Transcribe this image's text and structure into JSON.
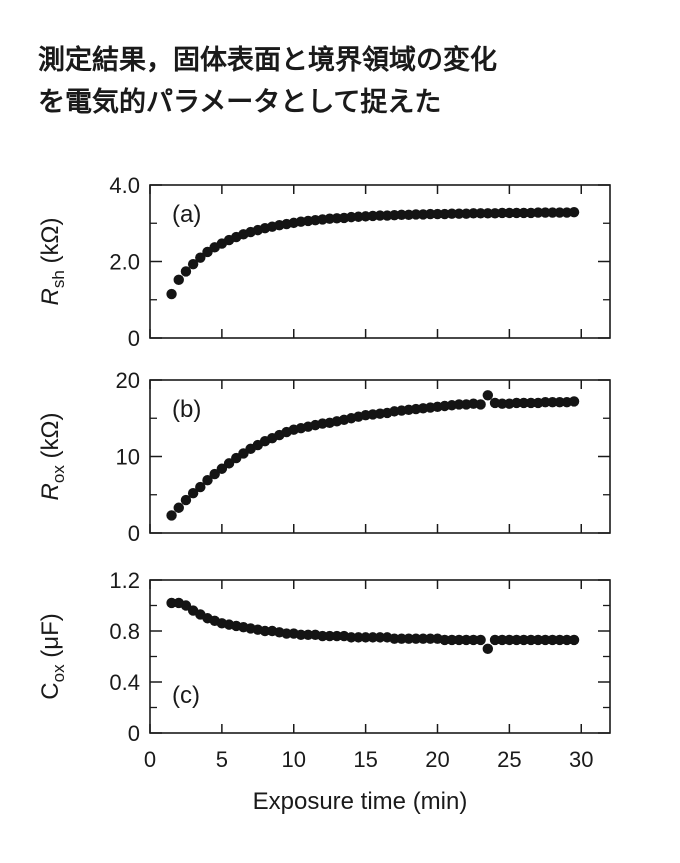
{
  "title": {
    "line1": "測定結果，固体表面と境界領域の変化",
    "line2": "を電気的パラメータとして捉えた"
  },
  "colors": {
    "marker": "#141414",
    "axis": "#1a1a1a",
    "background": "#ffffff"
  },
  "chart_data": [
    {
      "type": "scatter",
      "panel_label": "(a)",
      "ylabel_main": "R",
      "ylabel_sub": "sh",
      "ylabel_unit": "(kΩ)",
      "ylim": [
        0,
        4.0
      ],
      "yticks": [
        0,
        2.0,
        4.0
      ],
      "ytick_labels": [
        "0",
        "2.0",
        "4.0"
      ],
      "xlim": [
        0,
        32
      ],
      "grid": false,
      "x": [
        1.5,
        2.0,
        2.5,
        3.0,
        3.5,
        4.0,
        4.5,
        5.0,
        5.5,
        6.0,
        6.5,
        7.0,
        7.5,
        8.0,
        8.5,
        9.0,
        9.5,
        10.0,
        10.5,
        11.0,
        11.5,
        12.0,
        12.5,
        13.0,
        13.5,
        14.0,
        14.5,
        15.0,
        15.5,
        16.0,
        16.5,
        17.0,
        17.5,
        18.0,
        18.5,
        19.0,
        19.5,
        20.0,
        20.5,
        21.0,
        21.5,
        22.0,
        22.5,
        23.0,
        23.5,
        24.0,
        24.5,
        25.0,
        25.5,
        26.0,
        26.5,
        27.0,
        27.5,
        28.0,
        28.5,
        29.0,
        29.5
      ],
      "y": [
        1.15,
        1.52,
        1.74,
        1.93,
        2.1,
        2.25,
        2.37,
        2.47,
        2.56,
        2.64,
        2.71,
        2.77,
        2.82,
        2.87,
        2.91,
        2.95,
        2.98,
        3.01,
        3.04,
        3.06,
        3.08,
        3.1,
        3.12,
        3.13,
        3.14,
        3.16,
        3.17,
        3.18,
        3.19,
        3.2,
        3.2,
        3.21,
        3.22,
        3.22,
        3.23,
        3.23,
        3.24,
        3.24,
        3.24,
        3.25,
        3.25,
        3.25,
        3.26,
        3.26,
        3.26,
        3.26,
        3.27,
        3.27,
        3.27,
        3.27,
        3.27,
        3.28,
        3.28,
        3.28,
        3.28,
        3.28,
        3.29
      ]
    },
    {
      "type": "scatter",
      "panel_label": "(b)",
      "ylabel_main": "R",
      "ylabel_sub": "ox",
      "ylabel_unit": "(kΩ)",
      "ylim": [
        0,
        20
      ],
      "yticks": [
        0,
        10,
        20
      ],
      "ytick_labels": [
        "0",
        "10",
        "20"
      ],
      "xlim": [
        0,
        32
      ],
      "grid": false,
      "x": [
        1.5,
        2.0,
        2.5,
        3.0,
        3.5,
        4.0,
        4.5,
        5.0,
        5.5,
        6.0,
        6.5,
        7.0,
        7.5,
        8.0,
        8.5,
        9.0,
        9.5,
        10.0,
        10.5,
        11.0,
        11.5,
        12.0,
        12.5,
        13.0,
        13.5,
        14.0,
        14.5,
        15.0,
        15.5,
        16.0,
        16.5,
        17.0,
        17.5,
        18.0,
        18.5,
        19.0,
        19.5,
        20.0,
        20.5,
        21.0,
        21.5,
        22.0,
        22.5,
        23.0,
        23.5,
        24.0,
        24.5,
        25.0,
        25.5,
        26.0,
        26.5,
        27.0,
        27.5,
        28.0,
        28.5,
        29.0,
        29.5
      ],
      "y": [
        2.3,
        3.3,
        4.3,
        5.2,
        6.0,
        6.9,
        7.7,
        8.4,
        9.1,
        9.8,
        10.4,
        11.0,
        11.5,
        12.0,
        12.4,
        12.8,
        13.2,
        13.5,
        13.7,
        13.9,
        14.1,
        14.3,
        14.4,
        14.6,
        14.8,
        15.0,
        15.2,
        15.4,
        15.5,
        15.6,
        15.7,
        15.9,
        16.0,
        16.1,
        16.2,
        16.3,
        16.4,
        16.5,
        16.6,
        16.7,
        16.8,
        16.8,
        16.9,
        16.8,
        18.0,
        17.0,
        16.9,
        16.9,
        17.0,
        17.0,
        17.0,
        17.0,
        17.1,
        17.1,
        17.1,
        17.1,
        17.2
      ]
    },
    {
      "type": "scatter",
      "panel_label": "(c)",
      "ylabel_main": "C",
      "ylabel_sub": "ox",
      "ylabel_unit": "(μF)",
      "ylim": [
        0,
        1.2
      ],
      "yticks": [
        0,
        0.4,
        0.8,
        1.2
      ],
      "ytick_labels": [
        "0",
        "0.4",
        "0.8",
        "1.2"
      ],
      "xlim": [
        0,
        32
      ],
      "xticks": [
        0,
        5,
        10,
        15,
        20,
        25,
        30
      ],
      "xtick_labels": [
        "0",
        "5",
        "10",
        "15",
        "20",
        "25",
        "30"
      ],
      "xlabel": "Exposure time (min)",
      "grid": false,
      "x": [
        1.5,
        2.0,
        2.5,
        3.0,
        3.5,
        4.0,
        4.5,
        5.0,
        5.5,
        6.0,
        6.5,
        7.0,
        7.5,
        8.0,
        8.5,
        9.0,
        9.5,
        10.0,
        10.5,
        11.0,
        11.5,
        12.0,
        12.5,
        13.0,
        13.5,
        14.0,
        14.5,
        15.0,
        15.5,
        16.0,
        16.5,
        17.0,
        17.5,
        18.0,
        18.5,
        19.0,
        19.5,
        20.0,
        20.5,
        21.0,
        21.5,
        22.0,
        22.5,
        23.0,
        23.5,
        24.0,
        24.5,
        25.0,
        25.5,
        26.0,
        26.5,
        27.0,
        27.5,
        28.0,
        28.5,
        29.0,
        29.5
      ],
      "y": [
        1.02,
        1.02,
        1.0,
        0.96,
        0.93,
        0.9,
        0.88,
        0.86,
        0.85,
        0.84,
        0.83,
        0.82,
        0.81,
        0.8,
        0.8,
        0.79,
        0.78,
        0.78,
        0.77,
        0.77,
        0.77,
        0.76,
        0.76,
        0.76,
        0.76,
        0.75,
        0.75,
        0.75,
        0.75,
        0.75,
        0.75,
        0.74,
        0.74,
        0.74,
        0.74,
        0.74,
        0.74,
        0.74,
        0.73,
        0.73,
        0.73,
        0.73,
        0.73,
        0.73,
        0.66,
        0.73,
        0.73,
        0.73,
        0.73,
        0.73,
        0.73,
        0.73,
        0.73,
        0.73,
        0.73,
        0.73,
        0.73
      ]
    }
  ]
}
